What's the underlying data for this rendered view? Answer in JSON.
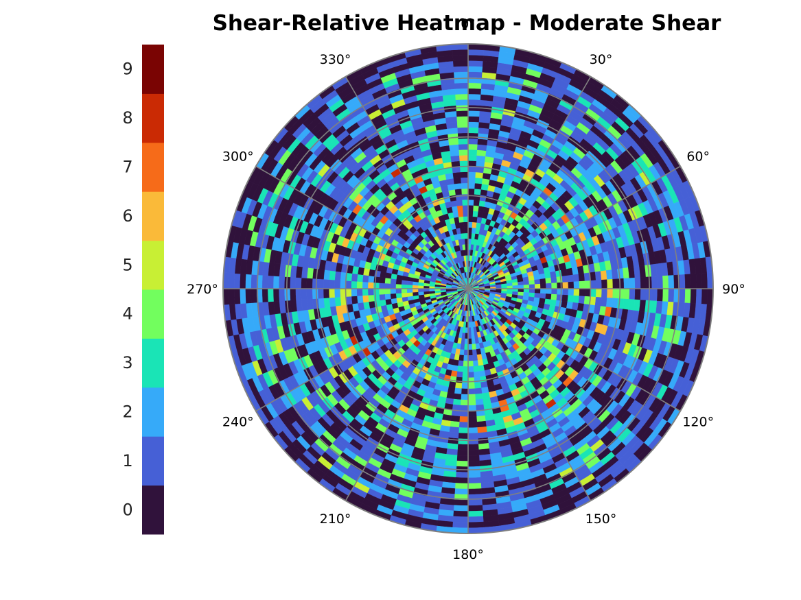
{
  "chart_data": {
    "type": "heatmap",
    "projection": "polar",
    "title": "Shear-Relative Heatmap - Moderate Shear",
    "theta_zero_location": "top",
    "theta_direction": "clockwise",
    "theta_tick_labels": [
      "0°",
      "30°",
      "60°",
      "90°",
      "120°",
      "150°",
      "180°",
      "210°",
      "240°",
      "270°",
      "300°",
      "330°"
    ],
    "theta_ticks_deg": [
      0,
      30,
      60,
      90,
      120,
      150,
      180,
      210,
      240,
      270,
      300,
      330
    ],
    "radial_rings": 5,
    "grid": true,
    "colorbar": {
      "placement": "left",
      "levels": [
        0,
        1,
        2,
        3,
        4,
        5,
        6,
        7,
        8,
        9
      ],
      "tick_labels": [
        "0",
        "1",
        "2",
        "3",
        "4",
        "5",
        "6",
        "7",
        "8",
        "9"
      ],
      "colors": [
        "#30123b",
        "#4660d6",
        "#36aaf9",
        "#1ae4b6",
        "#72fe5e",
        "#c8ef34",
        "#faba39",
        "#f66b19",
        "#ca2a04",
        "#7a0403"
      ]
    },
    "value_range": [
      0,
      9
    ],
    "grid_color": "#808080",
    "value_distribution_note": "cell values are discrete counts 0–9; outer bins dominated by 0–2, inner bins contain higher values (up to 8)"
  }
}
